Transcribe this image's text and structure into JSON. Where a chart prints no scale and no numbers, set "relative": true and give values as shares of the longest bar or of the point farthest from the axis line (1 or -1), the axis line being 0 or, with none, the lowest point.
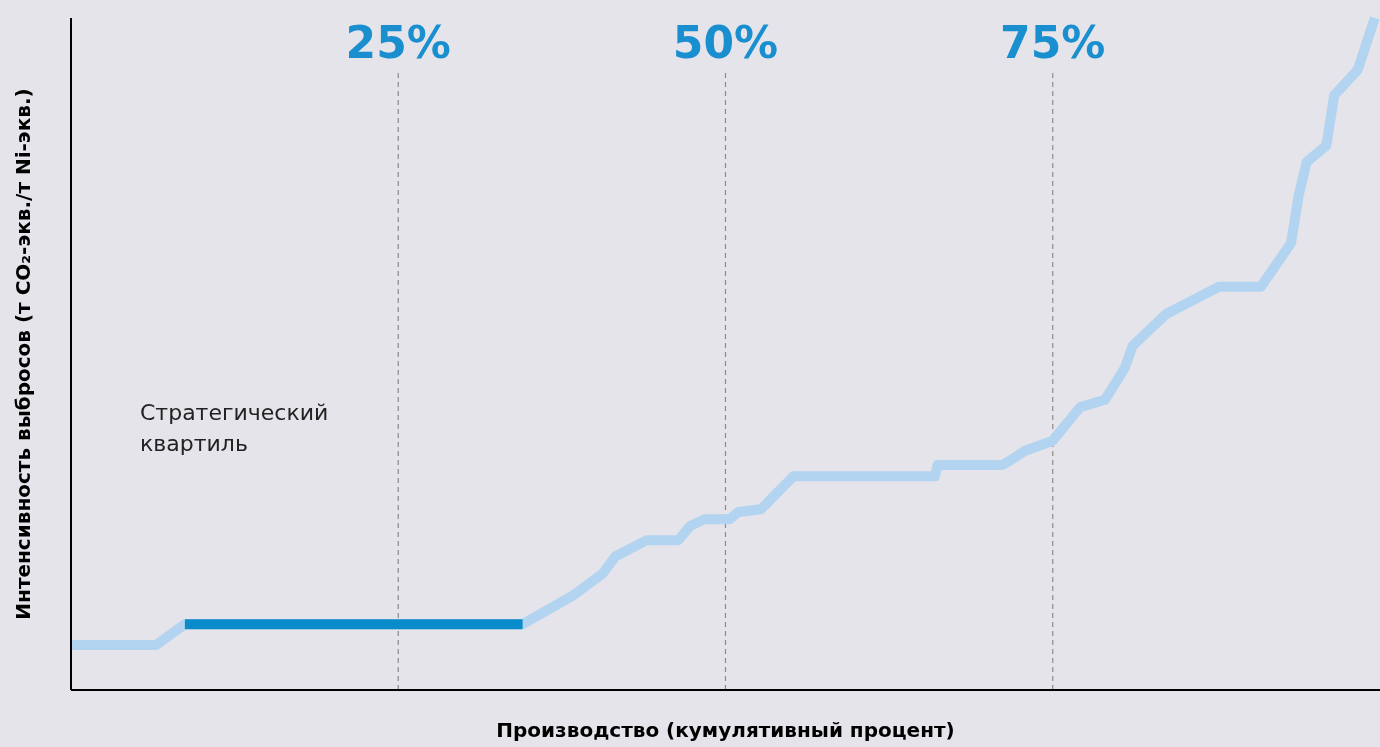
{
  "chart_data": {
    "type": "line",
    "relative": true,
    "xlabel": "Производство (кумулятивный процент)",
    "ylabel": "Интенсивность выбросов (т CO₂-экв./т Ni-экв.)",
    "xlim": [
      0,
      100
    ],
    "xticks": [
      {
        "value": 25,
        "label": "25%"
      },
      {
        "value": 50,
        "label": "50%"
      },
      {
        "value": 75,
        "label": "75%"
      }
    ],
    "tick_labels": "x",
    "grid": "x",
    "marker": "none",
    "line_style": "solid",
    "annotations": [
      "Стратегический квартиль"
    ],
    "series": [
      {
        "color": "#b2d4f0",
        "x": [
          0,
          6.5,
          8.7,
          34.5,
          38.3,
          40.6,
          41.6,
          44.0,
          46.4,
          47.3,
          48.4,
          50.3,
          51.0,
          52.7,
          55.2,
          66.0,
          66.2,
          71.2,
          72.9,
          75.0,
          77.1,
          79.0,
          80.5,
          81.1,
          83.7,
          87.7,
          90.9,
          93.2,
          93.8,
          94.4,
          95.9,
          96.5,
          98.3,
          99.6
        ],
        "values": [
          0.067,
          0.067,
          0.098,
          0.098,
          0.14,
          0.173,
          0.199,
          0.223,
          0.223,
          0.244,
          0.254,
          0.254,
          0.265,
          0.269,
          0.318,
          0.318,
          0.335,
          0.335,
          0.356,
          0.371,
          0.421,
          0.432,
          0.479,
          0.512,
          0.56,
          0.6,
          0.6,
          0.665,
          0.737,
          0.786,
          0.81,
          0.885,
          0.923,
          1
        ]
      },
      {
        "color": "#0a8ccb",
        "x": [
          8.7,
          34.5
        ],
        "values": [
          0.098,
          0.098
        ]
      }
    ]
  }
}
